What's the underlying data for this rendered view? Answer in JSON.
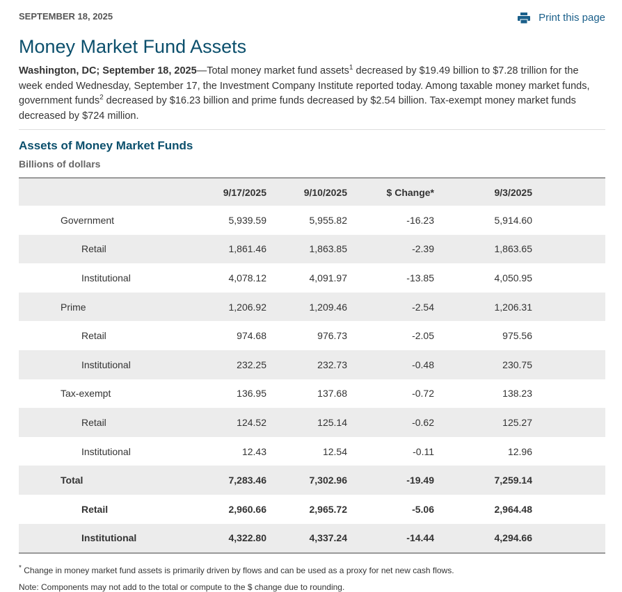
{
  "header": {
    "date": "SEPTEMBER 18, 2025",
    "print": "Print this page",
    "title": "Money Market Fund Assets"
  },
  "lead": {
    "dateline": "Washington, DC; September 18, 2025",
    "parts": [
      "—Total money market fund assets",
      "1",
      " decreased by $19.49 billion to $7.28 trillion for the week ended Wednesday, September 17, the Investment Company Institute reported today. Among taxable money market funds, government funds",
      "2",
      " decreased by $16.23 billion and prime funds decreased by $2.54 billion. Tax-exempt money market funds decreased by $724 million."
    ]
  },
  "table": {
    "title": "Assets of Money Market Funds",
    "subtitle": "Billions of dollars",
    "columns": [
      "9/17/2025",
      "9/10/2025",
      "$ Change*",
      "9/3/2025"
    ],
    "groups": [
      {
        "label": "Government",
        "values": [
          "5,939.59",
          "5,955.82",
          "-16.23",
          "5,914.60"
        ],
        "rows": [
          {
            "label": "Retail",
            "values": [
              "1,861.46",
              "1,863.85",
              "-2.39",
              "1,863.65"
            ]
          },
          {
            "label": "Institutional",
            "values": [
              "4,078.12",
              "4,091.97",
              "-13.85",
              "4,050.95"
            ]
          }
        ]
      },
      {
        "label": "Prime",
        "values": [
          "1,206.92",
          "1,209.46",
          "-2.54",
          "1,206.31"
        ],
        "rows": [
          {
            "label": "Retail",
            "values": [
              "974.68",
              "976.73",
              "-2.05",
              "975.56"
            ]
          },
          {
            "label": "Institutional",
            "values": [
              "232.25",
              "232.73",
              "-0.48",
              "230.75"
            ]
          }
        ]
      },
      {
        "label": "Tax-exempt",
        "values": [
          "136.95",
          "137.68",
          "-0.72",
          "138.23"
        ],
        "rows": [
          {
            "label": "Retail",
            "values": [
              "124.52",
              "125.14",
              "-0.62",
              "125.27"
            ]
          },
          {
            "label": "Institutional",
            "values": [
              "12.43",
              "12.54",
              "-0.11",
              "12.96"
            ]
          }
        ]
      }
    ],
    "total": {
      "label": "Total",
      "values": [
        "7,283.46",
        "7,302.96",
        "-19.49",
        "7,259.14"
      ],
      "rows": [
        {
          "label": "Retail",
          "values": [
            "2,960.66",
            "2,965.72",
            "-5.06",
            "2,964.48"
          ]
        },
        {
          "label": "Institutional",
          "values": [
            "4,322.80",
            "4,337.24",
            "-14.44",
            "4,294.66"
          ]
        }
      ]
    }
  },
  "footnotes": {
    "mark": "*",
    "change": "Change in money market fund assets is primarily driven by flows and can be used as a proxy for net new cash flows.",
    "note": "Note: Components may not add to the total or compute to the $ change due to rounding."
  }
}
